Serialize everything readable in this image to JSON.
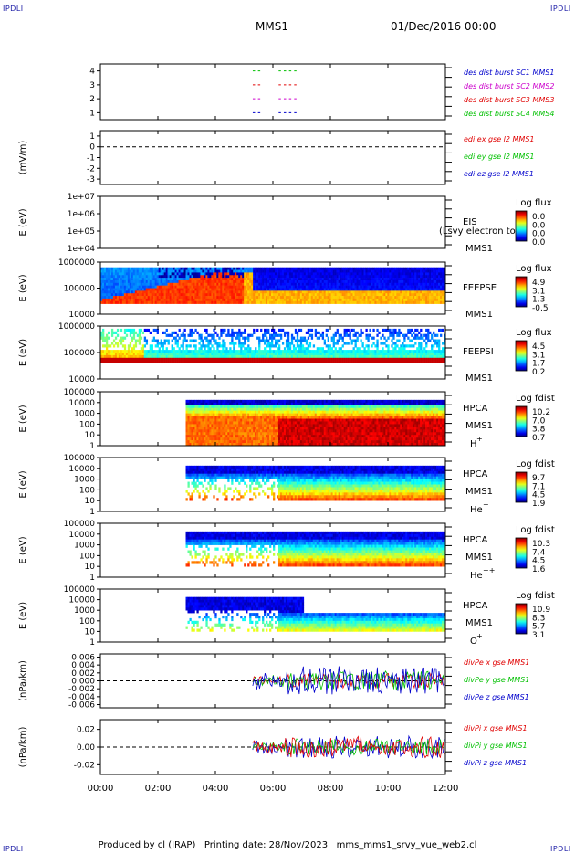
{
  "header": {
    "corner_tl": "IPDLI",
    "corner_tr": "IPDLI",
    "corner_bl": "IPDLI",
    "corner_br": "IPDLI",
    "spacecraft": "MMS1",
    "date": "01/Dec/2016 00:00"
  },
  "footer": {
    "produced_by": "Produced by cl (IRAP)",
    "printing_date": "Printing date: 28/Nov/2023",
    "file": "mms_mms1_srvy_vue_web2.cl"
  },
  "colors": {
    "blue": "#0000cc",
    "magenta": "#cc00cc",
    "red": "#e00000",
    "green": "#00c000"
  },
  "chart_data": {
    "type": "heatmap",
    "x_ticks": [
      "00:00",
      "02:00",
      "04:00",
      "06:00",
      "08:00",
      "10:00",
      "12:00"
    ],
    "xlim": [
      "00:00",
      "12:00"
    ],
    "panels": [
      {
        "id": "des-dist",
        "type": "scatter",
        "y_ticks": [
          "4",
          "3",
          "2",
          "1"
        ],
        "ylabel": "",
        "legend": [
          {
            "text": "des dist burst SC1 MMS1",
            "color": "#0000cc"
          },
          {
            "text": "des dist burst SC2 MMS2",
            "color": "#cc00cc"
          },
          {
            "text": "des dist burst SC3 MMS3",
            "color": "#e00000"
          },
          {
            "text": "des dist burst SC4 MMS4",
            "color": "#00c000"
          }
        ],
        "series": [
          {
            "y": 4,
            "color": "#00c000",
            "segments": [
              [
                5.3,
                5.6
              ],
              [
                6.2,
                6.8
              ]
            ]
          },
          {
            "y": 3,
            "color": "#e00000",
            "segments": [
              [
                5.3,
                5.6
              ],
              [
                6.2,
                6.8
              ]
            ]
          },
          {
            "y": 2,
            "color": "#cc00cc",
            "segments": [
              [
                5.3,
                5.6
              ],
              [
                6.2,
                6.8
              ]
            ]
          },
          {
            "y": 1,
            "color": "#0000cc",
            "segments": [
              [
                5.3,
                5.6
              ],
              [
                6.2,
                6.8
              ]
            ]
          }
        ]
      },
      {
        "id": "edi",
        "type": "line",
        "ylabel": "(mV/m)",
        "y_ticks": [
          "1",
          "0",
          "-1",
          "-2",
          "-3"
        ],
        "ylim": [
          -3.5,
          1.5
        ],
        "legend": [
          {
            "text": "edi ex gse l2 MMS1",
            "color": "#e00000"
          },
          {
            "text": "edi ey gse l2 MMS1",
            "color": "#00c000"
          },
          {
            "text": "edi ez gse l2 MMS1",
            "color": "#0000cc"
          }
        ]
      },
      {
        "id": "eis",
        "type": "heatmap",
        "ylabel": "E (eV)",
        "y_ticks": [
          "1e+07",
          "1e+06",
          "1e+05",
          "1e+04"
        ],
        "label_lines": [
          "EIS",
          "MMS1"
        ],
        "overlay_text": "(Lsvy electron to",
        "colorbar_title": "Log flux",
        "colorbar_ticks": [
          "0.0",
          "0.0",
          "0.0",
          "0.0"
        ]
      },
      {
        "id": "feeps-e",
        "type": "heatmap",
        "ylabel": "E (eV)",
        "y_ticks": [
          "1000000",
          "100000",
          "10000"
        ],
        "label_lines": [
          "FEEPSE",
          "MMS1"
        ],
        "colorbar_title": "Log flux",
        "colorbar_ticks": [
          "4.9",
          "3.1",
          "1.3",
          "-0.5"
        ]
      },
      {
        "id": "feeps-i",
        "type": "heatmap",
        "ylabel": "E (eV)",
        "y_ticks": [
          "1000000",
          "100000",
          "10000"
        ],
        "label_lines": [
          "FEEPSI",
          "MMS1"
        ],
        "colorbar_title": "Log flux",
        "colorbar_ticks": [
          "4.5",
          "3.1",
          "1.7",
          "0.2"
        ]
      },
      {
        "id": "hpca-h",
        "type": "heatmap",
        "ylabel": "E (eV)",
        "y_ticks": [
          "100000",
          "10000",
          "1000",
          "100",
          "10",
          "1"
        ],
        "label_lines": [
          "HPCA",
          "MMS1"
        ],
        "species": "H",
        "species_charge": "+",
        "colorbar_title": "Log fdist",
        "colorbar_ticks": [
          "10.2",
          "7.0",
          "3.8",
          "0.7"
        ]
      },
      {
        "id": "hpca-he1",
        "type": "heatmap",
        "ylabel": "E (eV)",
        "y_ticks": [
          "100000",
          "10000",
          "1000",
          "100",
          "10",
          "1"
        ],
        "label_lines": [
          "HPCA",
          "MMS1"
        ],
        "species": "He",
        "species_charge": "+",
        "colorbar_title": "Log fdist",
        "colorbar_ticks": [
          "9.7",
          "7.1",
          "4.5",
          "1.9"
        ]
      },
      {
        "id": "hpca-he2",
        "type": "heatmap",
        "ylabel": "E (eV)",
        "y_ticks": [
          "100000",
          "10000",
          "1000",
          "100",
          "10",
          "1"
        ],
        "label_lines": [
          "HPCA",
          "MMS1"
        ],
        "species": "He",
        "species_charge": "++",
        "colorbar_title": "Log fdist",
        "colorbar_ticks": [
          "10.3",
          "7.4",
          "4.5",
          "1.6"
        ]
      },
      {
        "id": "hpca-o",
        "type": "heatmap",
        "ylabel": "E (eV)",
        "y_ticks": [
          "100000",
          "10000",
          "1000",
          "100",
          "10",
          "1"
        ],
        "label_lines": [
          "HPCA",
          "MMS1"
        ],
        "species": "O",
        "species_charge": "+",
        "colorbar_title": "Log fdist",
        "colorbar_ticks": [
          "10.9",
          "8.3",
          "5.7",
          "3.1"
        ]
      },
      {
        "id": "divpe",
        "type": "line",
        "ylabel": "(nPa/km)",
        "y_ticks": [
          "0.006",
          "0.004",
          "0.002",
          "0.000",
          "-0.002",
          "-0.004",
          "-0.006"
        ],
        "ylim": [
          -0.0068,
          0.0068
        ],
        "legend": [
          {
            "text": "divPe x gse MMS1",
            "color": "#e00000"
          },
          {
            "text": "divPe y gse MMS1",
            "color": "#00c000"
          },
          {
            "text": "divPe z gse MMS1",
            "color": "#0000cc"
          }
        ]
      },
      {
        "id": "divpi",
        "type": "line",
        "ylabel": "(nPa/km)",
        "y_ticks": [
          "0.02",
          "0.00",
          "-0.02"
        ],
        "ylim": [
          -0.031,
          0.031
        ],
        "legend": [
          {
            "text": "divPi x gse MMS1",
            "color": "#e00000"
          },
          {
            "text": "divPi y gse MMS1",
            "color": "#00c000"
          },
          {
            "text": "divPi z gse MMS1",
            "color": "#0000cc"
          }
        ]
      }
    ]
  }
}
